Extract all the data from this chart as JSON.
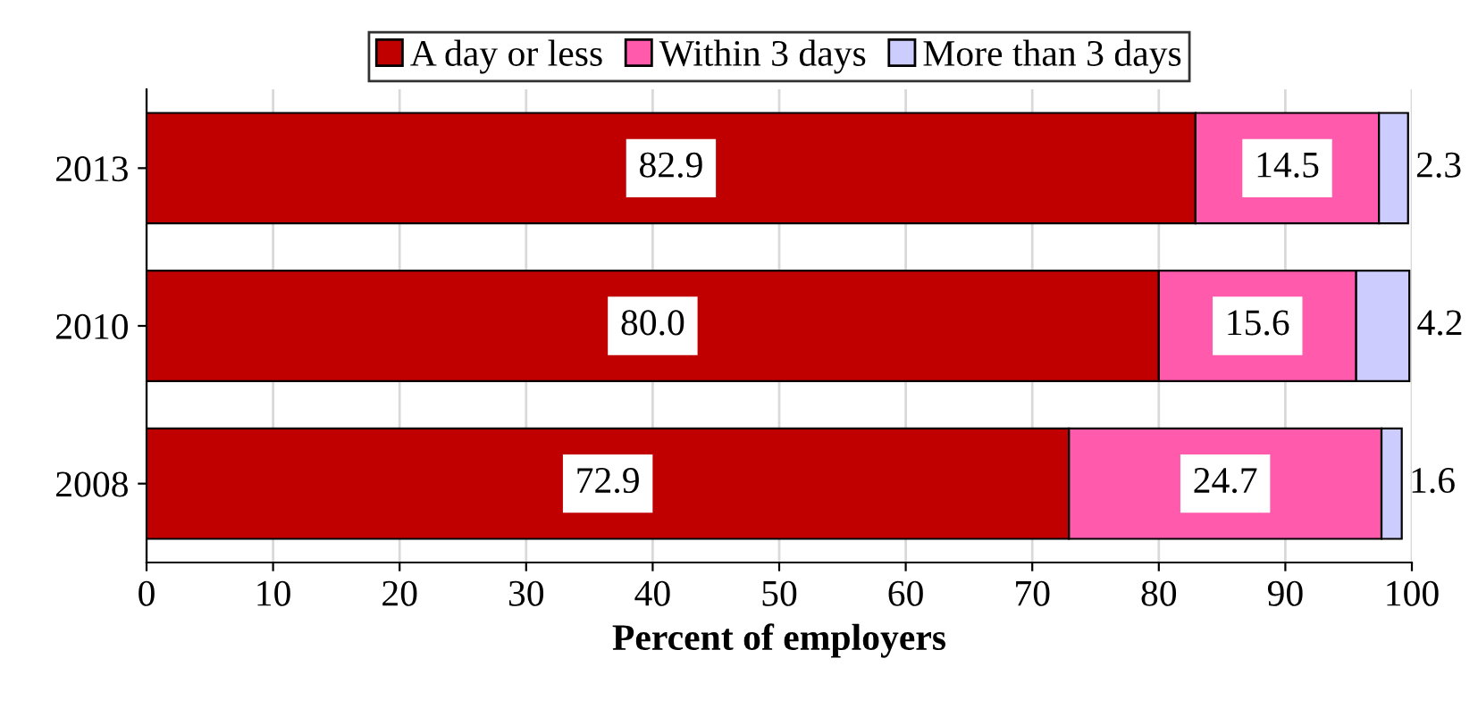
{
  "chart_data": {
    "type": "bar",
    "orientation": "horizontal",
    "stacked": true,
    "xlabel": "Percent of employers",
    "categories": [
      "2013",
      "2010",
      "2008"
    ],
    "series": [
      {
        "name": "A day or less",
        "color": "#c00000",
        "values": [
          82.9,
          80.0,
          72.9
        ],
        "value_labels": [
          "82.9",
          "80.0",
          "72.9"
        ]
      },
      {
        "name": "Within 3 days",
        "color": "#ff5aac",
        "values": [
          14.5,
          15.6,
          24.7
        ],
        "value_labels": [
          "14.5",
          "15.6",
          "24.7"
        ]
      },
      {
        "name": "More than 3 days",
        "color": "#ccccff",
        "values": [
          2.3,
          4.2,
          1.6
        ],
        "value_labels": [
          "2.3",
          "4.2",
          "1.6"
        ]
      }
    ],
    "xlim": [
      0,
      100
    ],
    "xticks": [
      0,
      10,
      20,
      30,
      40,
      50,
      60,
      70,
      80,
      90,
      100
    ],
    "grid": "x",
    "legend": "top"
  }
}
